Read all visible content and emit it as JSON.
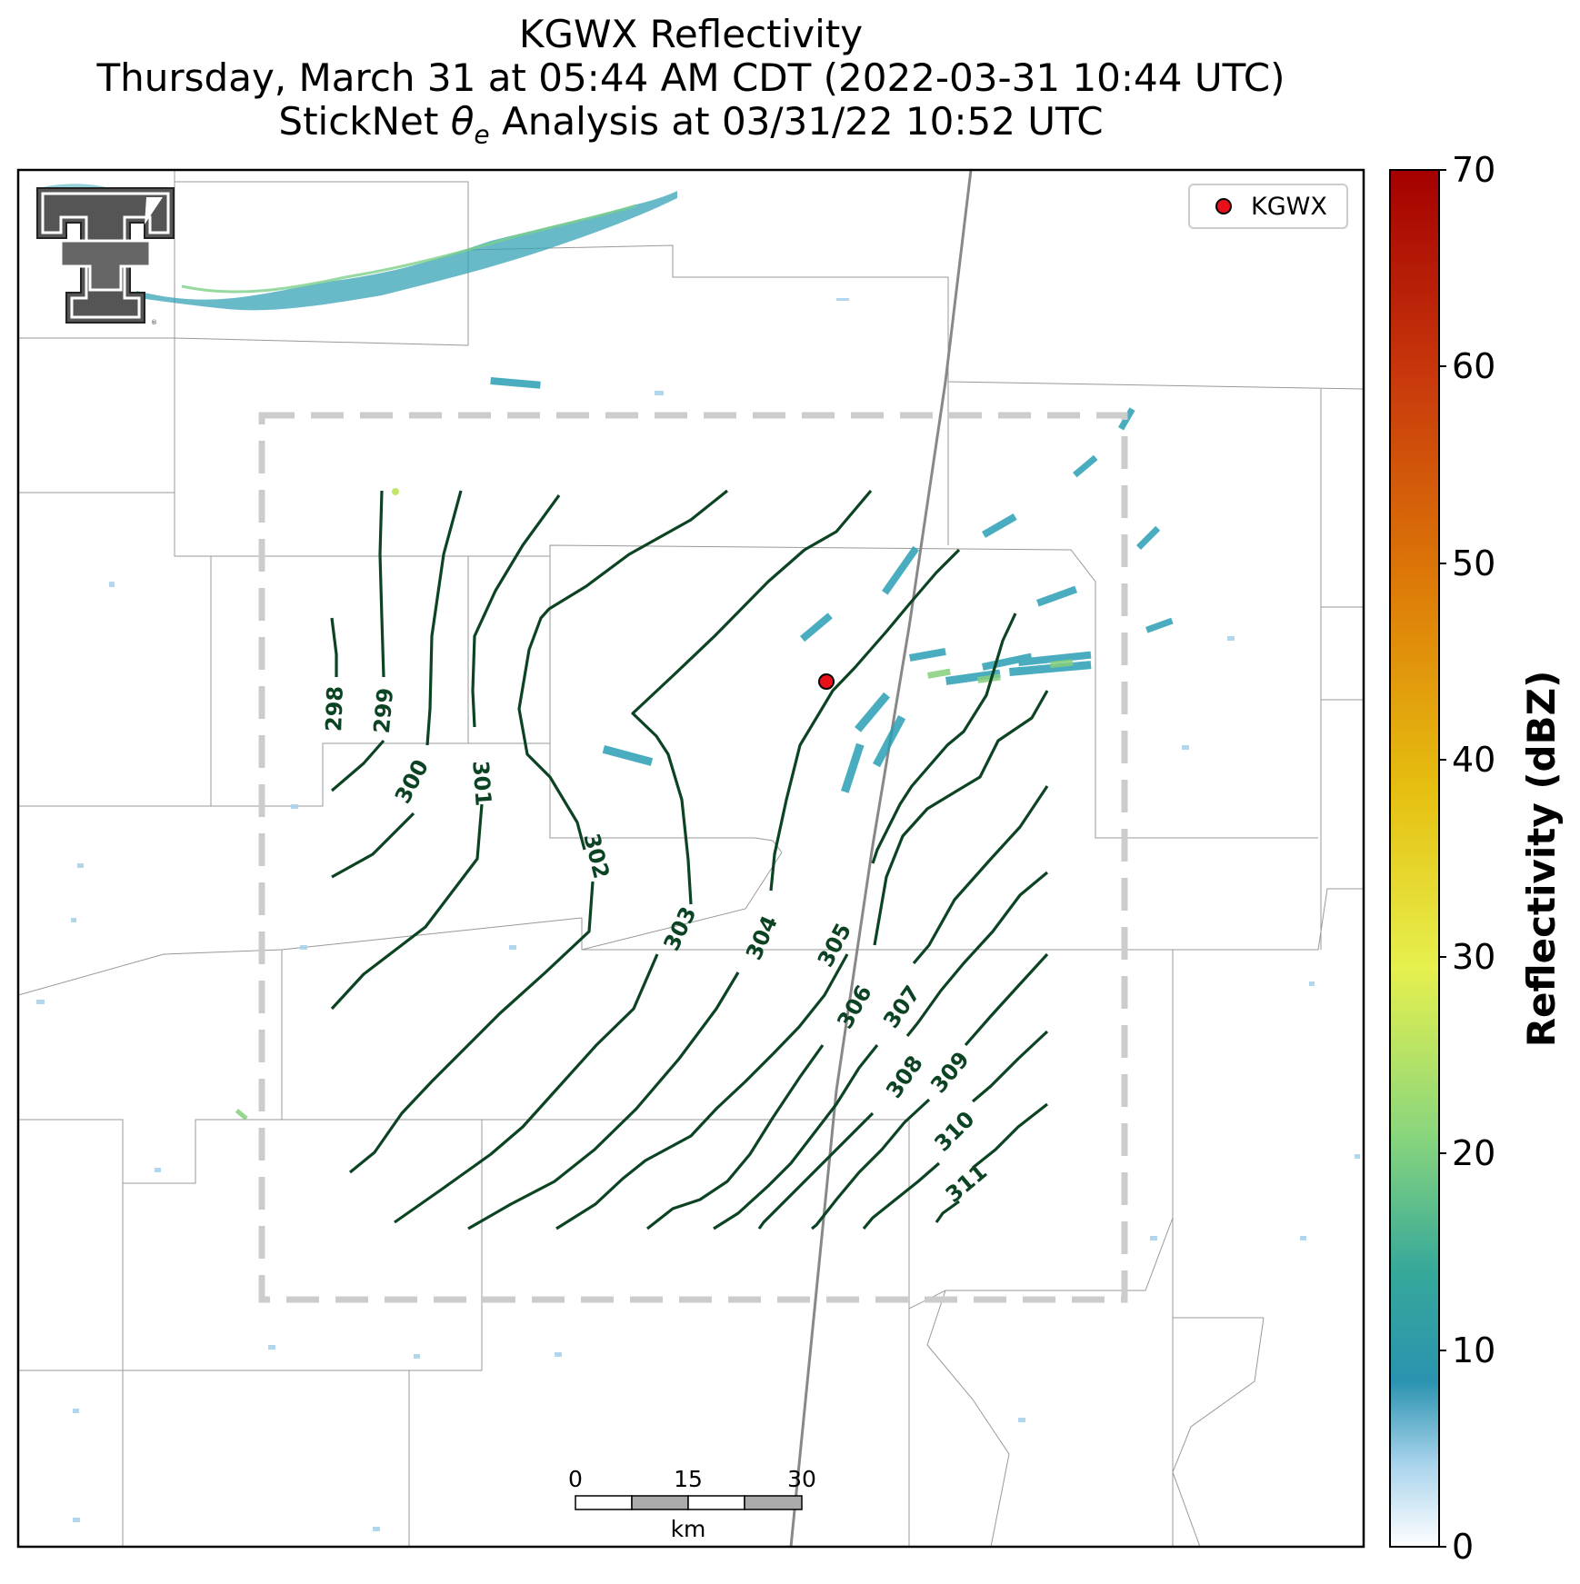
{
  "titles": {
    "line1": "KGWX Reflectivity",
    "line2": "Thursday, March 31 at 05:44 AM CDT (2022-03-31 10:44 UTC)",
    "line3_prefix": "StickNet ",
    "line3_symbol": "θ",
    "line3_subscript": "e",
    "line3_suffix": " Analysis at 03/31/22 10:52 UTC"
  },
  "legend": {
    "label": "KGWX",
    "marker_color": "#e8101a"
  },
  "colorbar": {
    "label": "Reflectivity (dBZ)",
    "ticks": [
      "0",
      "10",
      "20",
      "30",
      "40",
      "50",
      "60",
      "70"
    ]
  },
  "scalebar": {
    "ticks": [
      "0",
      "15",
      "30"
    ],
    "unit": "km"
  },
  "contour_labels": [
    "298",
    "299",
    "300",
    "301",
    "302",
    "303",
    "304",
    "305",
    "306",
    "307",
    "308",
    "309",
    "310",
    "311"
  ],
  "colors": {
    "contour": "#0b4323",
    "radar_low": "#bfe0f2",
    "radar_mid": "#2a9fb4",
    "radar_high": "#79c77a",
    "analysis_box": "#cccccc"
  },
  "logo": "texas-tech-double-t-logo"
}
